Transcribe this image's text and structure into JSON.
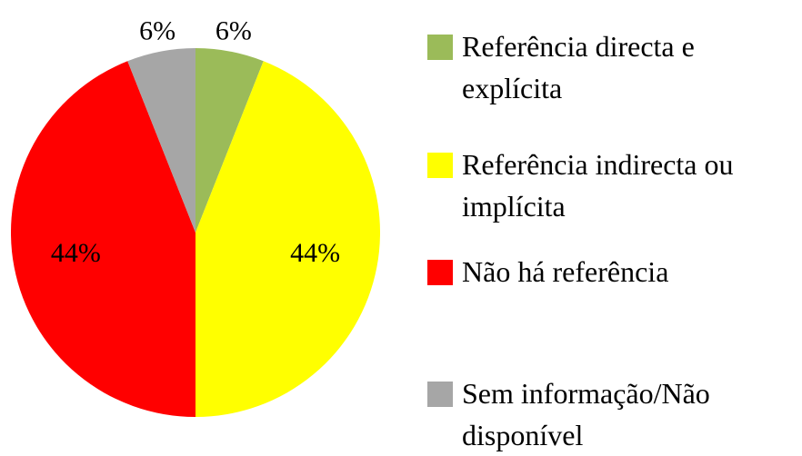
{
  "chart_data": {
    "type": "pie",
    "categories": [
      "Referência directa e explícita",
      "Referência indirecta ou implícita",
      "Não há referência",
      "Sem informação/Não disponível"
    ],
    "values": [
      6,
      44,
      44,
      6
    ],
    "value_labels": [
      "6%",
      "44%",
      "44%",
      "6%"
    ],
    "colors": [
      "#9bbb59",
      "#ffff00",
      "#ff0000",
      "#a6a6a6"
    ],
    "legend": "right"
  }
}
